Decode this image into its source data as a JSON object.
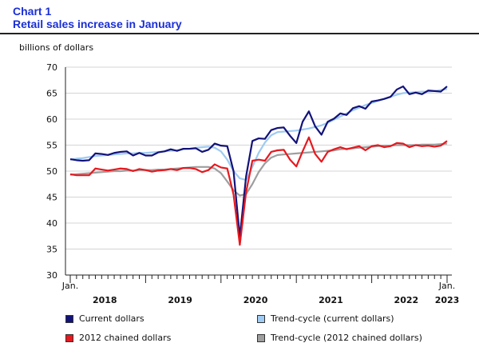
{
  "title": {
    "line1": "Chart 1",
    "line2": "Retail sales increase in January"
  },
  "colors": {
    "current": "#12127a",
    "trend_current": "#9fcbf2",
    "chained": "#e6191f",
    "trend_chained": "#9e9e9e",
    "title": "#1a2fd6"
  },
  "legend": [
    {
      "key": "current",
      "label": "Current dollars",
      "color": "#12127a"
    },
    {
      "key": "trend_current",
      "label": "Trend-cycle (current dollars)",
      "color": "#9fcbf2"
    },
    {
      "key": "chained",
      "label": "2012 chained dollars",
      "color": "#e6191f"
    },
    {
      "key": "trend_chained",
      "label": "Trend-cycle (2012 chained dollars)",
      "color": "#9e9e9e"
    }
  ],
  "chart_data": {
    "type": "line",
    "title": "Retail sales increase in January",
    "ylabel": "billions of dollars",
    "ylim": [
      30,
      70
    ],
    "yticks": [
      30,
      35,
      40,
      45,
      50,
      55,
      60,
      65,
      70
    ],
    "grid": true,
    "x_start_label": "Jan.",
    "x_end_label": "Jan.",
    "year_labels": [
      "2018",
      "2019",
      "2020",
      "2021",
      "2022",
      "2023"
    ],
    "n_months": 61,
    "series": [
      {
        "name": "Current dollars",
        "color": "#12127a",
        "values": [
          52.3,
          52.1,
          52.0,
          52.1,
          53.4,
          53.3,
          53.1,
          53.5,
          53.7,
          53.8,
          53.0,
          53.5,
          53.0,
          53.0,
          53.6,
          53.8,
          54.2,
          53.9,
          54.3,
          54.3,
          54.4,
          53.7,
          54.1,
          55.3,
          54.9,
          54.8,
          50.0,
          37.3,
          49.0,
          55.8,
          56.3,
          56.2,
          57.9,
          58.3,
          58.4,
          56.8,
          55.4,
          59.5,
          61.5,
          58.6,
          57.0,
          59.5,
          60.1,
          61.1,
          60.8,
          62.1,
          62.5,
          62.0,
          63.4,
          63.6,
          63.9,
          64.3,
          65.7,
          66.3,
          64.8,
          65.1,
          64.8,
          65.5,
          65.4,
          65.3,
          66.3
        ]
      },
      {
        "name": "Trend-cycle (current dollars)",
        "color": "#9fcbf2",
        "values": [
          52.2,
          52.4,
          52.5,
          52.7,
          52.9,
          53.0,
          53.1,
          53.2,
          53.3,
          53.4,
          53.4,
          53.5,
          53.5,
          53.6,
          53.7,
          53.8,
          53.9,
          54.0,
          54.2,
          54.3,
          54.5,
          54.6,
          54.7,
          54.5,
          53.8,
          52.2,
          50.0,
          48.6,
          48.3,
          50.8,
          53.5,
          55.5,
          56.9,
          57.5,
          57.6,
          57.7,
          57.8,
          58.0,
          58.2,
          58.5,
          58.8,
          59.3,
          59.9,
          60.5,
          61.1,
          61.7,
          62.2,
          62.7,
          63.1,
          63.5,
          63.9,
          64.3,
          64.7,
          65.0,
          65.1,
          65.2,
          65.3,
          65.3,
          65.4,
          65.6,
          65.8
        ]
      },
      {
        "name": "2012 chained dollars",
        "color": "#e6191f",
        "values": [
          49.4,
          49.2,
          49.2,
          49.2,
          50.5,
          50.3,
          50.1,
          50.3,
          50.5,
          50.4,
          50.0,
          50.4,
          50.2,
          49.9,
          50.1,
          50.2,
          50.4,
          50.2,
          50.6,
          50.6,
          50.4,
          49.8,
          50.2,
          51.3,
          50.7,
          50.5,
          45.5,
          35.8,
          46.0,
          52.0,
          52.2,
          52.0,
          53.7,
          54.0,
          54.1,
          52.2,
          50.9,
          53.8,
          56.5,
          53.3,
          51.8,
          53.7,
          54.2,
          54.6,
          54.2,
          54.5,
          54.8,
          54.0,
          54.8,
          55.0,
          54.6,
          54.8,
          55.4,
          55.3,
          54.6,
          55.0,
          54.8,
          54.9,
          54.7,
          54.9,
          55.8
        ]
      },
      {
        "name": "Trend-cycle (2012 chained dollars)",
        "color": "#9e9e9e",
        "values": [
          49.3,
          49.4,
          49.5,
          49.6,
          49.7,
          49.8,
          49.9,
          50.0,
          50.0,
          50.1,
          50.1,
          50.2,
          50.2,
          50.2,
          50.3,
          50.3,
          50.4,
          50.5,
          50.6,
          50.7,
          50.8,
          50.8,
          50.8,
          50.5,
          49.6,
          48.0,
          46.3,
          45.3,
          45.6,
          47.5,
          49.8,
          51.5,
          52.6,
          53.1,
          53.2,
          53.3,
          53.4,
          53.5,
          53.6,
          53.7,
          53.8,
          53.9,
          54.0,
          54.2,
          54.3,
          54.4,
          54.5,
          54.6,
          54.7,
          54.8,
          54.9,
          54.9,
          55.0,
          55.0,
          55.0,
          55.0,
          55.1,
          55.1,
          55.1,
          55.2,
          55.3
        ]
      }
    ]
  }
}
